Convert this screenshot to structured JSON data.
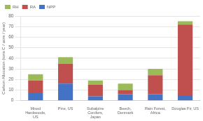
{
  "chart_data": {
    "type": "bar",
    "stacked": true,
    "categories": [
      "Mixed\nHardwoods,\nUS",
      "Pine, US",
      "Subalpine\nConifers,\nJapan",
      "Beech,\nDenmark",
      "Rain Forest,\nAfrica",
      "Douglas Fir, US"
    ],
    "series": [
      {
        "name": "NPP",
        "color": "#4472C4",
        "values": [
          7,
          16,
          4,
          6,
          6,
          5
        ]
      },
      {
        "name": "RA",
        "color": "#C0504D",
        "values": [
          12,
          19,
          11,
          4,
          18,
          67
        ]
      },
      {
        "name": "RH",
        "color": "#9BBB59",
        "values": [
          6,
          6,
          4,
          6,
          6,
          3
        ]
      }
    ],
    "ylabel": "Carbon Allocation (tons C / acre / year)",
    "ylim": [
      0,
      80
    ],
    "yticks": [
      0,
      10,
      20,
      30,
      40,
      50,
      60,
      70,
      80
    ],
    "grid": true,
    "legend": "upper left"
  }
}
